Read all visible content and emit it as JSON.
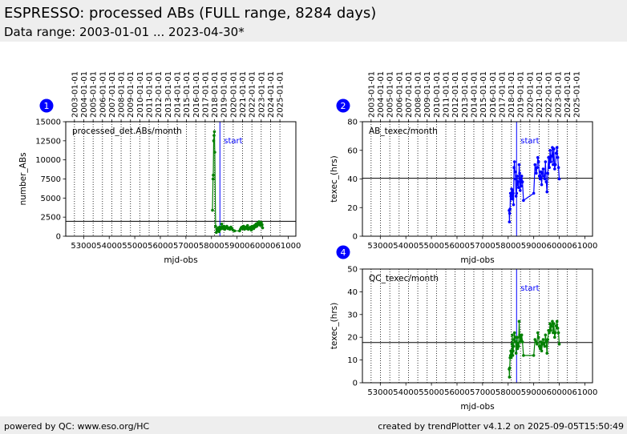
{
  "header": {
    "title": "ESPRESSO: processed ABs (FULL range, 8284 days)",
    "subtitle": "Data range: 2003-01-01 ... 2023-04-30*"
  },
  "footer": {
    "left": "powered by QC: www.eso.org/HC",
    "right": "created by trendPlotter v4.1.2 on 2025-09-05T15:50:49"
  },
  "colors": {
    "panel1": "#008000",
    "panel2": "#0000ff",
    "panel4": "#008000",
    "marker": "#0000ff",
    "badge": "#0000ff"
  },
  "chart_data": [
    {
      "id": "1",
      "type": "line",
      "title": "processed_det.ABs/month",
      "xlabel": "mjd-obs",
      "ylabel": "number_ABs",
      "xlim": [
        52300,
        61300
      ],
      "ylim": [
        0,
        15000
      ],
      "xticks": [
        53000,
        54000,
        55000,
        56000,
        57000,
        58000,
        59000,
        60000,
        61000
      ],
      "yticks": [
        0,
        2500,
        5000,
        7500,
        10000,
        12500,
        15000
      ],
      "yticklabels": [
        "0",
        "2500",
        "5000",
        "7500",
        "10000",
        "12500",
        "15000"
      ],
      "top_ticks": [
        "2003-01-01",
        "2004-01-01",
        "2005-01-01",
        "2006-01-01",
        "2007-01-01",
        "2008-01-01",
        "2009-01-01",
        "2010-01-01",
        "2011-01-01",
        "2012-01-01",
        "2013-01-01",
        "2014-01-01",
        "2015-01-01",
        "2016-01-01",
        "2017-01-01",
        "2018-01-01",
        "2019-01-01",
        "2020-01-01",
        "2021-01-01",
        "2022-01-01",
        "2023-01-01",
        "2024-01-01",
        "2025-01-01"
      ],
      "top_ticks_mjd": [
        52640,
        53005,
        53371,
        53736,
        54101,
        54466,
        54832,
        55197,
        55562,
        55927,
        56293,
        56658,
        57023,
        57388,
        57754,
        58119,
        58484,
        58849,
        59215,
        59580,
        59945,
        60310,
        60676
      ],
      "hline": 1950,
      "marker_x": 58330,
      "marker_label": "start",
      "series": [
        {
          "x": [
            58040,
            58060,
            58070,
            58085,
            58100,
            58115,
            58130,
            58160,
            58190,
            58210,
            58220,
            58240,
            58260,
            58280,
            58300,
            58320,
            58345,
            58370,
            58400,
            58430,
            58460,
            58490,
            58520,
            58560,
            58600,
            58640,
            58680,
            58720,
            58760,
            58800,
            58840,
            58900,
            59100,
            59130,
            59160,
            59190,
            59230,
            59260,
            59290,
            59320,
            59350,
            59380,
            59410,
            59440,
            59470,
            59500,
            59530,
            59560,
            59590,
            59620,
            59650,
            59680,
            59710,
            59740,
            59770,
            59800,
            59830,
            59860,
            59890,
            59920,
            59950,
            59980,
            60000
          ],
          "y": [
            3400,
            7500,
            8000,
            12500,
            13200,
            13700,
            11000,
            1300,
            500,
            900,
            800,
            700,
            1100,
            1000,
            600,
            1200,
            900,
            1000,
            1600,
            1200,
            1000,
            1300,
            900,
            1100,
            1300,
            1000,
            1100,
            900,
            1200,
            1000,
            800,
            700,
            700,
            900,
            1100,
            1200,
            1000,
            1300,
            900,
            1100,
            1200,
            1000,
            1400,
            900,
            1100,
            1000,
            1200,
            800,
            1300,
            1100,
            1000,
            1400,
            1200,
            1600,
            1300,
            1700,
            1500,
            1900,
            1600,
            1400,
            1800,
            1500,
            1100
          ]
        }
      ]
    },
    {
      "id": "2",
      "type": "line",
      "title": "AB_texec/month",
      "xlabel": "mjd-obs",
      "ylabel": "texec_(hrs)",
      "xlim": [
        52300,
        61300
      ],
      "ylim": [
        0,
        80
      ],
      "xticks": [
        53000,
        54000,
        55000,
        56000,
        57000,
        58000,
        59000,
        60000,
        61000
      ],
      "yticks": [
        0,
        20,
        40,
        60,
        80
      ],
      "yticklabels": [
        "0",
        "20",
        "40",
        "60",
        "80"
      ],
      "top_ticks": [
        "2003-01-01",
        "2004-01-01",
        "2005-01-01",
        "2006-01-01",
        "2007-01-01",
        "2008-01-01",
        "2009-01-01",
        "2010-01-01",
        "2011-01-01",
        "2012-01-01",
        "2013-01-01",
        "2014-01-01",
        "2015-01-01",
        "2016-01-01",
        "2017-01-01",
        "2018-01-01",
        "2019-01-01",
        "2020-01-01",
        "2021-01-01",
        "2022-01-01",
        "2023-01-01",
        "2024-01-01",
        "2025-01-01"
      ],
      "top_ticks_mjd": [
        52640,
        53005,
        53371,
        53736,
        54101,
        54466,
        54832,
        55197,
        55562,
        55927,
        56293,
        56658,
        57023,
        57388,
        57754,
        58119,
        58484,
        58849,
        59215,
        59580,
        59945,
        60310,
        60676
      ],
      "hline": 40.5,
      "marker_x": 58330,
      "marker_label": "start",
      "series": [
        {
          "x": [
            58040,
            58050,
            58060,
            58075,
            58090,
            58105,
            58120,
            58135,
            58150,
            58165,
            58180,
            58195,
            58210,
            58230,
            58250,
            58270,
            58290,
            58310,
            58330,
            58350,
            58370,
            58390,
            58410,
            58430,
            58450,
            58470,
            58490,
            58510,
            58530,
            58560,
            58600,
            59000,
            59050,
            59100,
            59130,
            59160,
            59190,
            59220,
            59250,
            59280,
            59310,
            59340,
            59370,
            59400,
            59430,
            59460,
            59490,
            59520,
            59550,
            59580,
            59610,
            59640,
            59670,
            59700,
            59730,
            59760,
            59790,
            59820,
            59850,
            59880,
            59910,
            59940,
            59970,
            60000
          ],
          "y": [
            18,
            10,
            16,
            19,
            30,
            28,
            26,
            33,
            28,
            32,
            26,
            30,
            22,
            48,
            52,
            45,
            40,
            28,
            30,
            42,
            36,
            38,
            34,
            50,
            44,
            32,
            40,
            35,
            42,
            38,
            25,
            30,
            50,
            44,
            48,
            55,
            52,
            42,
            40,
            45,
            36,
            44,
            47,
            42,
            40,
            52,
            38,
            31,
            44,
            55,
            48,
            60,
            52,
            56,
            62,
            50,
            61,
            47,
            50,
            58,
            62,
            55,
            48,
            40
          ]
        }
      ]
    },
    {
      "id": "4",
      "type": "line",
      "title": "QC_texec/month",
      "xlabel": "mjd-obs",
      "ylabel": "texec_(hrs)",
      "xlim": [
        52300,
        61300
      ],
      "ylim": [
        0,
        50
      ],
      "xticks": [
        53000,
        54000,
        55000,
        56000,
        57000,
        58000,
        59000,
        60000,
        61000
      ],
      "yticks": [
        0,
        10,
        20,
        30,
        40,
        50
      ],
      "yticklabels": [
        "0",
        "10",
        "20",
        "30",
        "40",
        "50"
      ],
      "top_ticks": [],
      "top_ticks_mjd": [
        52640,
        53005,
        53371,
        53736,
        54101,
        54466,
        54832,
        55197,
        55562,
        55927,
        56293,
        56658,
        57023,
        57388,
        57754,
        58119,
        58484,
        58849,
        59215,
        59580,
        59945,
        60310,
        60676
      ],
      "hline": 17.7,
      "marker_x": 58330,
      "marker_label": "start",
      "series": [
        {
          "x": [
            58040,
            58050,
            58060,
            58075,
            58090,
            58105,
            58120,
            58135,
            58150,
            58165,
            58180,
            58195,
            58210,
            58230,
            58250,
            58270,
            58290,
            58310,
            58330,
            58350,
            58370,
            58390,
            58410,
            58430,
            58450,
            58470,
            58490,
            58510,
            58530,
            58560,
            58600,
            59000,
            59050,
            59100,
            59130,
            59160,
            59190,
            59220,
            59250,
            59280,
            59310,
            59340,
            59370,
            59400,
            59430,
            59460,
            59490,
            59520,
            59550,
            59580,
            59610,
            59640,
            59670,
            59700,
            59730,
            59760,
            59790,
            59820,
            59850,
            59880,
            59910,
            59940,
            59970,
            60000
          ],
          "y": [
            6,
            2.5,
            6.5,
            11,
            12,
            14,
            11,
            13,
            17,
            21,
            12,
            14,
            16,
            19,
            22,
            20,
            18,
            13,
            16,
            20,
            15,
            17,
            16,
            27,
            21,
            18,
            20,
            19,
            21,
            18,
            12,
            12,
            19,
            18,
            17,
            22,
            20,
            16,
            15,
            18,
            14,
            17,
            19,
            17,
            16,
            21,
            18,
            13,
            19,
            23,
            22,
            26,
            23,
            25,
            27,
            22,
            26,
            20,
            22,
            25,
            27,
            24,
            22,
            17
          ]
        }
      ]
    }
  ]
}
